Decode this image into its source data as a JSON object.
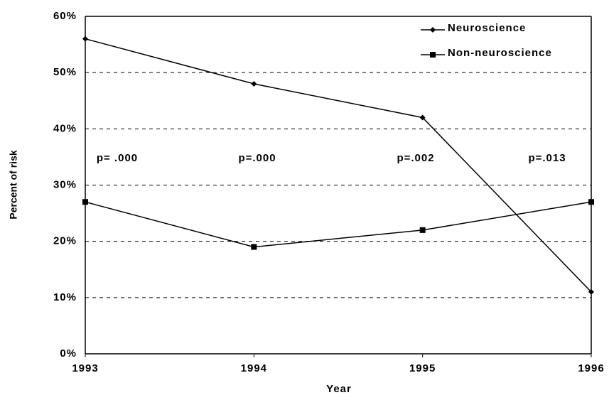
{
  "chart_data": {
    "type": "line",
    "x_label": "Year",
    "y_label": "Percent of risk",
    "x": [
      1993,
      1994,
      1995,
      1996
    ],
    "xlim": [
      1993,
      1996
    ],
    "xticks": [
      1993,
      1994,
      1995,
      1996
    ],
    "ylim": [
      0,
      60
    ],
    "yticks": [
      {
        "value": 0,
        "label": "0%"
      },
      {
        "value": 10,
        "label": "10%"
      },
      {
        "value": 20,
        "label": "20%"
      },
      {
        "value": 30,
        "label": "30%"
      },
      {
        "value": 40,
        "label": "40%"
      },
      {
        "value": 50,
        "label": "50%"
      },
      {
        "value": 60,
        "label": "60%"
      }
    ],
    "grid": true,
    "legend": "upper right",
    "series": [
      {
        "name": "Neuroscience",
        "color": "#000000",
        "marker": "diamond",
        "values": [
          56,
          48,
          42,
          11
        ]
      },
      {
        "name": "Non-neuroscience",
        "color": "#000000",
        "marker": "square",
        "values": [
          27,
          19,
          22,
          27
        ]
      }
    ],
    "annotations": [
      "p= .000",
      "p=.000",
      "p=.002",
      "p=.013"
    ]
  }
}
